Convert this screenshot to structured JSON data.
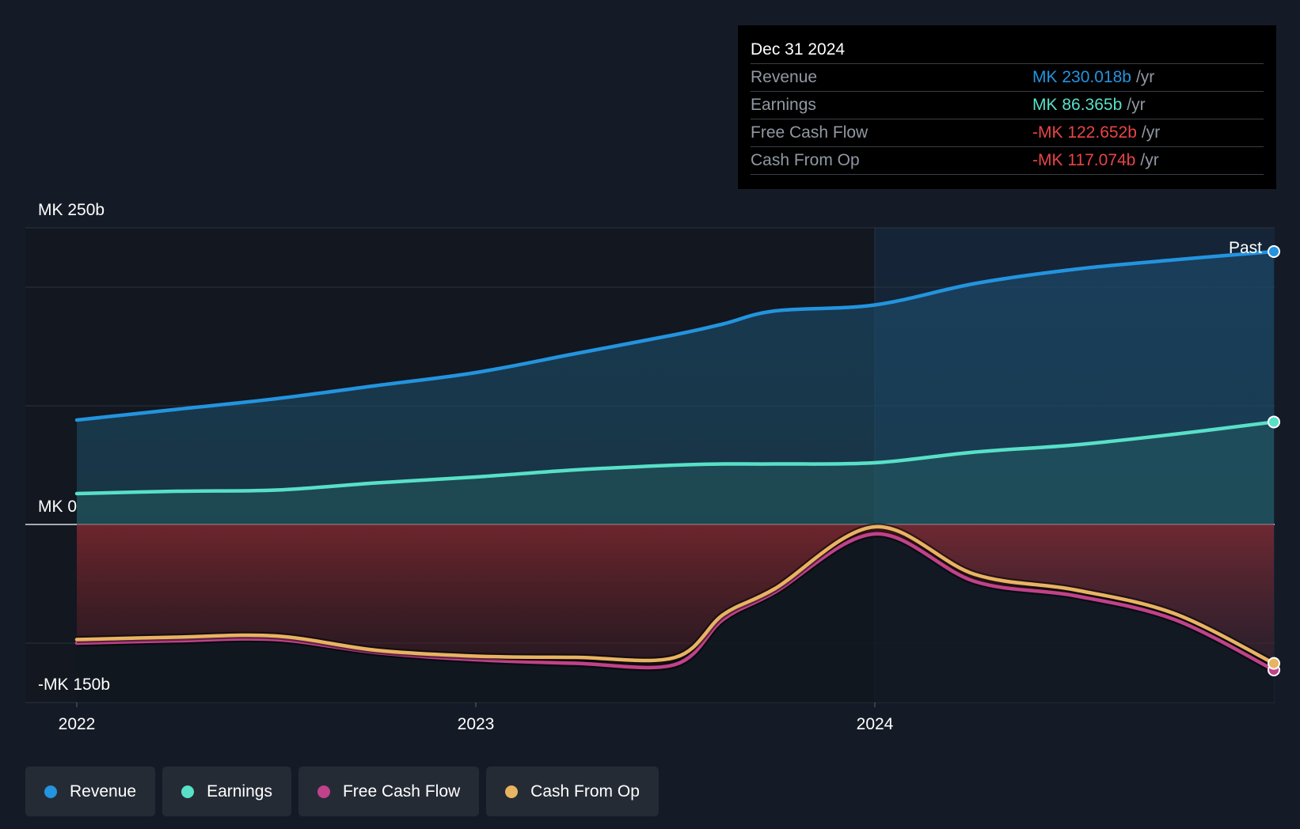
{
  "chart_data": {
    "type": "line",
    "x": [
      2022.0,
      2022.25,
      2022.5,
      2022.75,
      2023.0,
      2023.25,
      2023.5,
      2023.62,
      2023.75,
      2024.0,
      2024.25,
      2024.5,
      2024.75,
      2025.0
    ],
    "series": [
      {
        "name": "Revenue",
        "color": "#2394df",
        "values": [
          88,
          97,
          106,
          117,
          128,
          144,
          160,
          169,
          180,
          185,
          203,
          215,
          223,
          230.018
        ]
      },
      {
        "name": "Earnings",
        "color": "#58e0c8",
        "values": [
          26,
          28,
          29,
          35,
          40,
          46,
          50,
          51,
          51,
          52,
          61,
          67,
          76,
          86.365
        ]
      },
      {
        "name": "Free Cash Flow",
        "color": "#c0428a",
        "values": [
          -100,
          -98,
          -97,
          -108,
          -114,
          -117,
          -118,
          -80,
          -57,
          -8,
          -48,
          -60,
          -80,
          -122.652
        ]
      },
      {
        "name": "Cash From Op",
        "color": "#e8b462",
        "values": [
          -97,
          -95,
          -94,
          -106,
          -111,
          -112,
          -112,
          -76,
          -54,
          -2,
          -42,
          -55,
          -75,
          -117.074
        ]
      }
    ],
    "xlabel": "",
    "ylabel": "",
    "ylim": [
      -150,
      250
    ],
    "xticks": [
      "2022",
      "2023",
      "2024"
    ],
    "ytick_labels": [
      "MK 250b",
      "MK 0",
      "-MK 150b"
    ],
    "past_label": "Past"
  },
  "tooltip": {
    "date": "Dec 31 2024",
    "unit": "/yr",
    "rows": [
      {
        "name": "Revenue",
        "value": "MK 230.018b",
        "color": "#2394df"
      },
      {
        "name": "Earnings",
        "value": "MK 86.365b",
        "color": "#58e0c8"
      },
      {
        "name": "Free Cash Flow",
        "value": "-MK 122.652b",
        "color": "#e84545"
      },
      {
        "name": "Cash From Op",
        "value": "-MK 117.074b",
        "color": "#e84545"
      }
    ]
  },
  "legend": [
    {
      "label": "Revenue",
      "color": "#2394df"
    },
    {
      "label": "Earnings",
      "color": "#58e0c8"
    },
    {
      "label": "Free Cash Flow",
      "color": "#c0428a"
    },
    {
      "label": "Cash From Op",
      "color": "#e8b462"
    }
  ]
}
